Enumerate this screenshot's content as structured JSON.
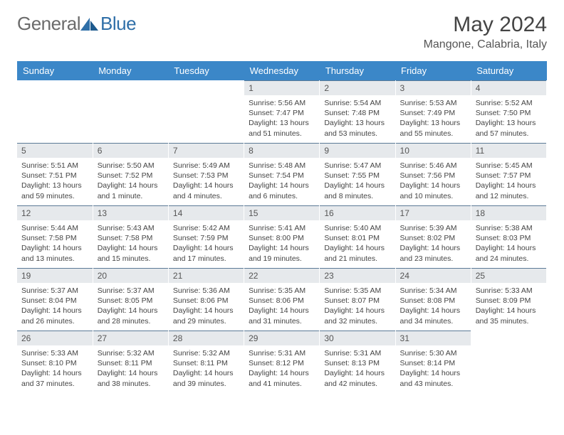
{
  "logo": {
    "text_left": "General",
    "text_right": "Blue"
  },
  "header": {
    "month_title": "May 2024",
    "location": "Mangone, Calabria, Italy"
  },
  "colors": {
    "header_bg": "#3b87c8",
    "header_fg": "#ffffff",
    "daynum_bg": "#e6e9ec",
    "daynum_border": "#5b7a96",
    "text": "#444444",
    "logo_gray": "#6b6b6b",
    "logo_blue": "#2f6fa8"
  },
  "weekdays": [
    "Sunday",
    "Monday",
    "Tuesday",
    "Wednesday",
    "Thursday",
    "Friday",
    "Saturday"
  ],
  "weeks": [
    [
      null,
      null,
      null,
      {
        "n": "1",
        "sr": "Sunrise: 5:56 AM",
        "ss": "Sunset: 7:47 PM",
        "dl1": "Daylight: 13 hours",
        "dl2": "and 51 minutes."
      },
      {
        "n": "2",
        "sr": "Sunrise: 5:54 AM",
        "ss": "Sunset: 7:48 PM",
        "dl1": "Daylight: 13 hours",
        "dl2": "and 53 minutes."
      },
      {
        "n": "3",
        "sr": "Sunrise: 5:53 AM",
        "ss": "Sunset: 7:49 PM",
        "dl1": "Daylight: 13 hours",
        "dl2": "and 55 minutes."
      },
      {
        "n": "4",
        "sr": "Sunrise: 5:52 AM",
        "ss": "Sunset: 7:50 PM",
        "dl1": "Daylight: 13 hours",
        "dl2": "and 57 minutes."
      }
    ],
    [
      {
        "n": "5",
        "sr": "Sunrise: 5:51 AM",
        "ss": "Sunset: 7:51 PM",
        "dl1": "Daylight: 13 hours",
        "dl2": "and 59 minutes."
      },
      {
        "n": "6",
        "sr": "Sunrise: 5:50 AM",
        "ss": "Sunset: 7:52 PM",
        "dl1": "Daylight: 14 hours",
        "dl2": "and 1 minute."
      },
      {
        "n": "7",
        "sr": "Sunrise: 5:49 AM",
        "ss": "Sunset: 7:53 PM",
        "dl1": "Daylight: 14 hours",
        "dl2": "and 4 minutes."
      },
      {
        "n": "8",
        "sr": "Sunrise: 5:48 AM",
        "ss": "Sunset: 7:54 PM",
        "dl1": "Daylight: 14 hours",
        "dl2": "and 6 minutes."
      },
      {
        "n": "9",
        "sr": "Sunrise: 5:47 AM",
        "ss": "Sunset: 7:55 PM",
        "dl1": "Daylight: 14 hours",
        "dl2": "and 8 minutes."
      },
      {
        "n": "10",
        "sr": "Sunrise: 5:46 AM",
        "ss": "Sunset: 7:56 PM",
        "dl1": "Daylight: 14 hours",
        "dl2": "and 10 minutes."
      },
      {
        "n": "11",
        "sr": "Sunrise: 5:45 AM",
        "ss": "Sunset: 7:57 PM",
        "dl1": "Daylight: 14 hours",
        "dl2": "and 12 minutes."
      }
    ],
    [
      {
        "n": "12",
        "sr": "Sunrise: 5:44 AM",
        "ss": "Sunset: 7:58 PM",
        "dl1": "Daylight: 14 hours",
        "dl2": "and 13 minutes."
      },
      {
        "n": "13",
        "sr": "Sunrise: 5:43 AM",
        "ss": "Sunset: 7:58 PM",
        "dl1": "Daylight: 14 hours",
        "dl2": "and 15 minutes."
      },
      {
        "n": "14",
        "sr": "Sunrise: 5:42 AM",
        "ss": "Sunset: 7:59 PM",
        "dl1": "Daylight: 14 hours",
        "dl2": "and 17 minutes."
      },
      {
        "n": "15",
        "sr": "Sunrise: 5:41 AM",
        "ss": "Sunset: 8:00 PM",
        "dl1": "Daylight: 14 hours",
        "dl2": "and 19 minutes."
      },
      {
        "n": "16",
        "sr": "Sunrise: 5:40 AM",
        "ss": "Sunset: 8:01 PM",
        "dl1": "Daylight: 14 hours",
        "dl2": "and 21 minutes."
      },
      {
        "n": "17",
        "sr": "Sunrise: 5:39 AM",
        "ss": "Sunset: 8:02 PM",
        "dl1": "Daylight: 14 hours",
        "dl2": "and 23 minutes."
      },
      {
        "n": "18",
        "sr": "Sunrise: 5:38 AM",
        "ss": "Sunset: 8:03 PM",
        "dl1": "Daylight: 14 hours",
        "dl2": "and 24 minutes."
      }
    ],
    [
      {
        "n": "19",
        "sr": "Sunrise: 5:37 AM",
        "ss": "Sunset: 8:04 PM",
        "dl1": "Daylight: 14 hours",
        "dl2": "and 26 minutes."
      },
      {
        "n": "20",
        "sr": "Sunrise: 5:37 AM",
        "ss": "Sunset: 8:05 PM",
        "dl1": "Daylight: 14 hours",
        "dl2": "and 28 minutes."
      },
      {
        "n": "21",
        "sr": "Sunrise: 5:36 AM",
        "ss": "Sunset: 8:06 PM",
        "dl1": "Daylight: 14 hours",
        "dl2": "and 29 minutes."
      },
      {
        "n": "22",
        "sr": "Sunrise: 5:35 AM",
        "ss": "Sunset: 8:06 PM",
        "dl1": "Daylight: 14 hours",
        "dl2": "and 31 minutes."
      },
      {
        "n": "23",
        "sr": "Sunrise: 5:35 AM",
        "ss": "Sunset: 8:07 PM",
        "dl1": "Daylight: 14 hours",
        "dl2": "and 32 minutes."
      },
      {
        "n": "24",
        "sr": "Sunrise: 5:34 AM",
        "ss": "Sunset: 8:08 PM",
        "dl1": "Daylight: 14 hours",
        "dl2": "and 34 minutes."
      },
      {
        "n": "25",
        "sr": "Sunrise: 5:33 AM",
        "ss": "Sunset: 8:09 PM",
        "dl1": "Daylight: 14 hours",
        "dl2": "and 35 minutes."
      }
    ],
    [
      {
        "n": "26",
        "sr": "Sunrise: 5:33 AM",
        "ss": "Sunset: 8:10 PM",
        "dl1": "Daylight: 14 hours",
        "dl2": "and 37 minutes."
      },
      {
        "n": "27",
        "sr": "Sunrise: 5:32 AM",
        "ss": "Sunset: 8:11 PM",
        "dl1": "Daylight: 14 hours",
        "dl2": "and 38 minutes."
      },
      {
        "n": "28",
        "sr": "Sunrise: 5:32 AM",
        "ss": "Sunset: 8:11 PM",
        "dl1": "Daylight: 14 hours",
        "dl2": "and 39 minutes."
      },
      {
        "n": "29",
        "sr": "Sunrise: 5:31 AM",
        "ss": "Sunset: 8:12 PM",
        "dl1": "Daylight: 14 hours",
        "dl2": "and 41 minutes."
      },
      {
        "n": "30",
        "sr": "Sunrise: 5:31 AM",
        "ss": "Sunset: 8:13 PM",
        "dl1": "Daylight: 14 hours",
        "dl2": "and 42 minutes."
      },
      {
        "n": "31",
        "sr": "Sunrise: 5:30 AM",
        "ss": "Sunset: 8:14 PM",
        "dl1": "Daylight: 14 hours",
        "dl2": "and 43 minutes."
      },
      null
    ]
  ]
}
